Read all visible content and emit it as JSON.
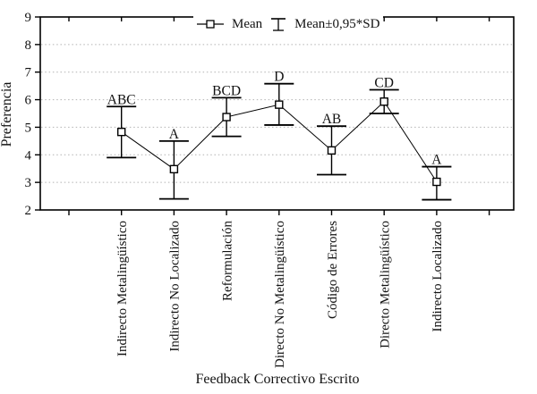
{
  "chart_data": {
    "type": "line",
    "title": "",
    "xlabel": "Feedback Correctivo Escrito",
    "ylabel": "Preferencia",
    "ylim": [
      2,
      9
    ],
    "yticks": [
      2,
      3,
      4,
      5,
      6,
      7,
      8,
      9
    ],
    "gridlines_at": [
      3,
      4,
      5,
      6,
      7,
      8
    ],
    "grid_style": "horizontal-dotted",
    "legend": {
      "position": "top-center-inside",
      "entries": [
        {
          "label": "Mean",
          "glyph": "square-marker-line"
        },
        {
          "label": "Mean±0,95*SD",
          "glyph": "error-bar"
        }
      ]
    },
    "categories": [
      "Indirecto Metalingüístico",
      "Indirecto No Localizado",
      "Reformulación",
      "Directo No Metalingüístico",
      "Código de Errores",
      "Directo Metalingüístico",
      "Indirecto Localizado"
    ],
    "series": [
      {
        "name": "Mean",
        "values": [
          4.83,
          3.48,
          5.37,
          5.82,
          4.16,
          5.93,
          3.02
        ]
      }
    ],
    "error_upper": [
      5.75,
      4.5,
      6.07,
      6.58,
      5.04,
      6.36,
      3.57
    ],
    "error_lower": [
      3.9,
      2.4,
      4.67,
      5.08,
      3.28,
      5.5,
      2.37
    ],
    "significance_labels": [
      "ABC",
      "A",
      "BCD",
      "D",
      "AB",
      "CD",
      "A"
    ],
    "colors": {
      "line": "#000000",
      "marker_fill": "#ffffff",
      "grid": "#b2b2b2",
      "text": "#111111",
      "background": "#ffffff"
    }
  }
}
